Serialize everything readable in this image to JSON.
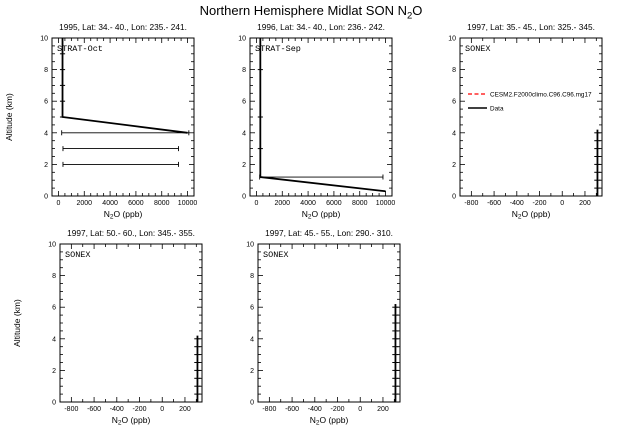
{
  "header": {
    "title_parts": [
      "Northern Hemisphere Midlat SON N",
      "2",
      "O"
    ]
  },
  "chart_data": {
    "type": "line",
    "xlabel_parts": [
      "N",
      "2",
      "O (ppb)"
    ],
    "ylabel": "Altitude (km)",
    "colors": {
      "data": "#000000",
      "model": "#ff0000"
    },
    "legend": {
      "panel_index": 2,
      "entries": [
        {
          "label": "CESM2.F2000climo.C96.C96.mg17",
          "color": "#ff0000",
          "dashed": true
        },
        {
          "label": "Data",
          "color": "#000000",
          "dashed": false
        }
      ]
    },
    "panels": [
      {
        "title": "1995, Lat: 34.- 40., Lon: 235.- 241.",
        "inner_label": "STRAT-Oct",
        "show_ylabel": true,
        "xlim": [
          -500,
          10500
        ],
        "xticks": [
          0,
          2000,
          4000,
          6000,
          8000,
          10000
        ],
        "xminor_step": 500,
        "ylim": [
          0,
          10
        ],
        "yticks": [
          0,
          2,
          4,
          6,
          8,
          10
        ],
        "yminor_step": 0.5,
        "profile": [
          [
            315,
            10
          ],
          [
            315,
            5
          ],
          [
            10000,
            4
          ]
        ],
        "profile_ticks": {
          "halfwidth": 200,
          "points": [
            [
              315,
              10
            ],
            [
              315,
              9
            ],
            [
              315,
              8
            ],
            [
              315,
              7
            ],
            [
              315,
              6
            ],
            [
              315,
              5
            ]
          ]
        },
        "error_bars": [
          {
            "alt": 4,
            "xmin": 250,
            "xmax": 10100
          },
          {
            "alt": 3,
            "xmin": 350,
            "xmax": 9300
          },
          {
            "alt": 2,
            "xmin": 350,
            "xmax": 9300
          }
        ]
      },
      {
        "title": "1996, Lat: 34.- 40., Lon: 236.- 242.",
        "inner_label": "STRAT-Sep",
        "show_ylabel": false,
        "xlim": [
          -500,
          10500
        ],
        "xticks": [
          0,
          2000,
          4000,
          6000,
          8000,
          10000
        ],
        "xminor_step": 500,
        "ylim": [
          0,
          10
        ],
        "yticks": [
          0,
          2,
          4,
          6,
          8,
          10
        ],
        "yminor_step": 0.5,
        "profile": [
          [
            300,
            10
          ],
          [
            300,
            1.2
          ],
          [
            10000,
            0.3
          ]
        ],
        "profile_ticks": {
          "halfwidth": 200,
          "points": [
            [
              300,
              8
            ],
            [
              300,
              5
            ],
            [
              300,
              3
            ]
          ]
        },
        "error_bars": [
          {
            "alt": 1.2,
            "xmin": 250,
            "xmax": 9800
          }
        ]
      },
      {
        "title": "1997, Lat: 35.- 45., Lon: 325.- 345.",
        "inner_label": "SONEX",
        "show_ylabel": false,
        "xlim": [
          -900,
          350
        ],
        "xticks": [
          -800,
          -600,
          -400,
          -200,
          0,
          200
        ],
        "xminor_step": 100,
        "ylim": [
          0,
          10
        ],
        "yticks": [
          0,
          2,
          4,
          6,
          8,
          10
        ],
        "yminor_step": 0.5,
        "profile": [
          [
            310,
            0
          ],
          [
            310,
            4.2
          ]
        ],
        "profile_ticks": {
          "halfwidth": 28,
          "points": [
            [
              310,
              0.5
            ],
            [
              310,
              1
            ],
            [
              310,
              1.5
            ],
            [
              310,
              2
            ],
            [
              310,
              2.5
            ],
            [
              310,
              3
            ],
            [
              310,
              3.5
            ],
            [
              310,
              4
            ]
          ]
        },
        "error_bars": []
      },
      {
        "title": "1997, Lat: 50.- 60., Lon: 345.- 355.",
        "inner_label": "SONEX",
        "show_ylabel": true,
        "xlim": [
          -900,
          350
        ],
        "xticks": [
          -800,
          -600,
          -400,
          -200,
          0,
          200
        ],
        "xminor_step": 100,
        "ylim": [
          0,
          10
        ],
        "yticks": [
          0,
          2,
          4,
          6,
          8,
          10
        ],
        "yminor_step": 0.5,
        "profile": [
          [
            310,
            0
          ],
          [
            310,
            4.2
          ]
        ],
        "profile_ticks": {
          "halfwidth": 28,
          "points": [
            [
              310,
              0.5
            ],
            [
              310,
              1
            ],
            [
              310,
              1.5
            ],
            [
              310,
              2
            ],
            [
              310,
              2.5
            ],
            [
              310,
              3
            ],
            [
              310,
              3.5
            ],
            [
              310,
              4
            ]
          ]
        },
        "error_bars": []
      },
      {
        "title": "1997, Lat: 45.- 55., Lon: 290.- 310.",
        "inner_label": "SONEX",
        "show_ylabel": false,
        "xlim": [
          -900,
          350
        ],
        "xticks": [
          -800,
          -600,
          -400,
          -200,
          0,
          200
        ],
        "xminor_step": 100,
        "ylim": [
          0,
          10
        ],
        "yticks": [
          0,
          2,
          4,
          6,
          8,
          10
        ],
        "yminor_step": 0.5,
        "profile": [
          [
            310,
            0
          ],
          [
            310,
            6.2
          ]
        ],
        "profile_ticks": {
          "halfwidth": 28,
          "points": [
            [
              310,
              0.5
            ],
            [
              310,
              1
            ],
            [
              310,
              1.5
            ],
            [
              310,
              2
            ],
            [
              310,
              2.5
            ],
            [
              310,
              3
            ],
            [
              310,
              3.5
            ],
            [
              310,
              4
            ],
            [
              310,
              4.5
            ],
            [
              310,
              5
            ],
            [
              310,
              5.5
            ],
            [
              310,
              6
            ]
          ]
        },
        "error_bars": []
      }
    ]
  }
}
